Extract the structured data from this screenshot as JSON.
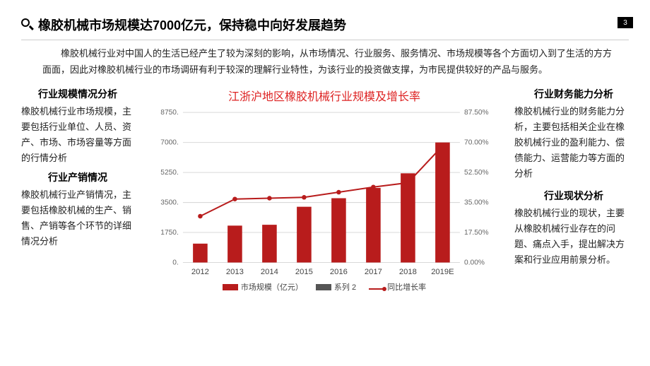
{
  "page_number": "3",
  "header": {
    "title": "橡胶机械市场规模达7000亿元，保持稳中向好发展趋势"
  },
  "intro": "橡胶机械行业对中国人的生活已经产生了较为深刻的影响，从市场情况、行业服务、服务情况、市场规模等各个方面切入到了生活的方方面面，因此对橡胶机械行业的市场调研有利于较深的理解行业特性，为该行业的投资做支撑，为市民提供较好的产品与服务。",
  "left": {
    "sec1_h": "行业规模情况分析",
    "sec1_p": "橡胶机械行业市场规模，主要包括行业单位、人员、资产、市场、市场容量等方面的行情分析",
    "sec2_h": "行业产销情况",
    "sec2_p": "橡胶机械行业产销情况，主要包括橡胶机械的生产、销售、产销等各个环节的详细情况分析"
  },
  "right": {
    "sec1_h": "行业财务能力分析",
    "sec1_p": "橡胶机械行业的财务能力分析，主要包括相关企业在橡胶机械行业的盈利能力、偿债能力、运营能力等方面的分析",
    "sec2_h": "行业现状分析",
    "sec2_p": "橡胶机械行业的现状，主要从橡胶机械行业存在的问题、痛点入手，提出解决方案和行业应用前景分析。"
  },
  "chart": {
    "title": "江浙沪地区橡胶机械行业规模及增长率",
    "type": "bar+line",
    "categories": [
      "2012",
      "2013",
      "2014",
      "2015",
      "2016",
      "2017",
      "2018",
      "2019E"
    ],
    "bar_values": [
      1100,
      2150,
      2200,
      3250,
      3750,
      4350,
      5200,
      7000
    ],
    "line_values": [
      27,
      37,
      37.5,
      38,
      41,
      44,
      46.5,
      68
    ],
    "y_left_ticks": [
      0,
      1750,
      3500,
      5250,
      7000,
      8750
    ],
    "y_right_ticks": [
      "0.00%",
      "17.50%",
      "35.00%",
      "52.50%",
      "70.00%",
      "87.50%"
    ],
    "y_left_max": 8750,
    "y_right_max": 87.5,
    "bar_color": "#b81c1c",
    "line_color": "#b81c1c",
    "grid_color": "#d9d9d9",
    "legend": {
      "bar": "市场规模（亿元）",
      "series2": "系列 2",
      "line": "同比增长率"
    },
    "series2_color": "#555555"
  }
}
